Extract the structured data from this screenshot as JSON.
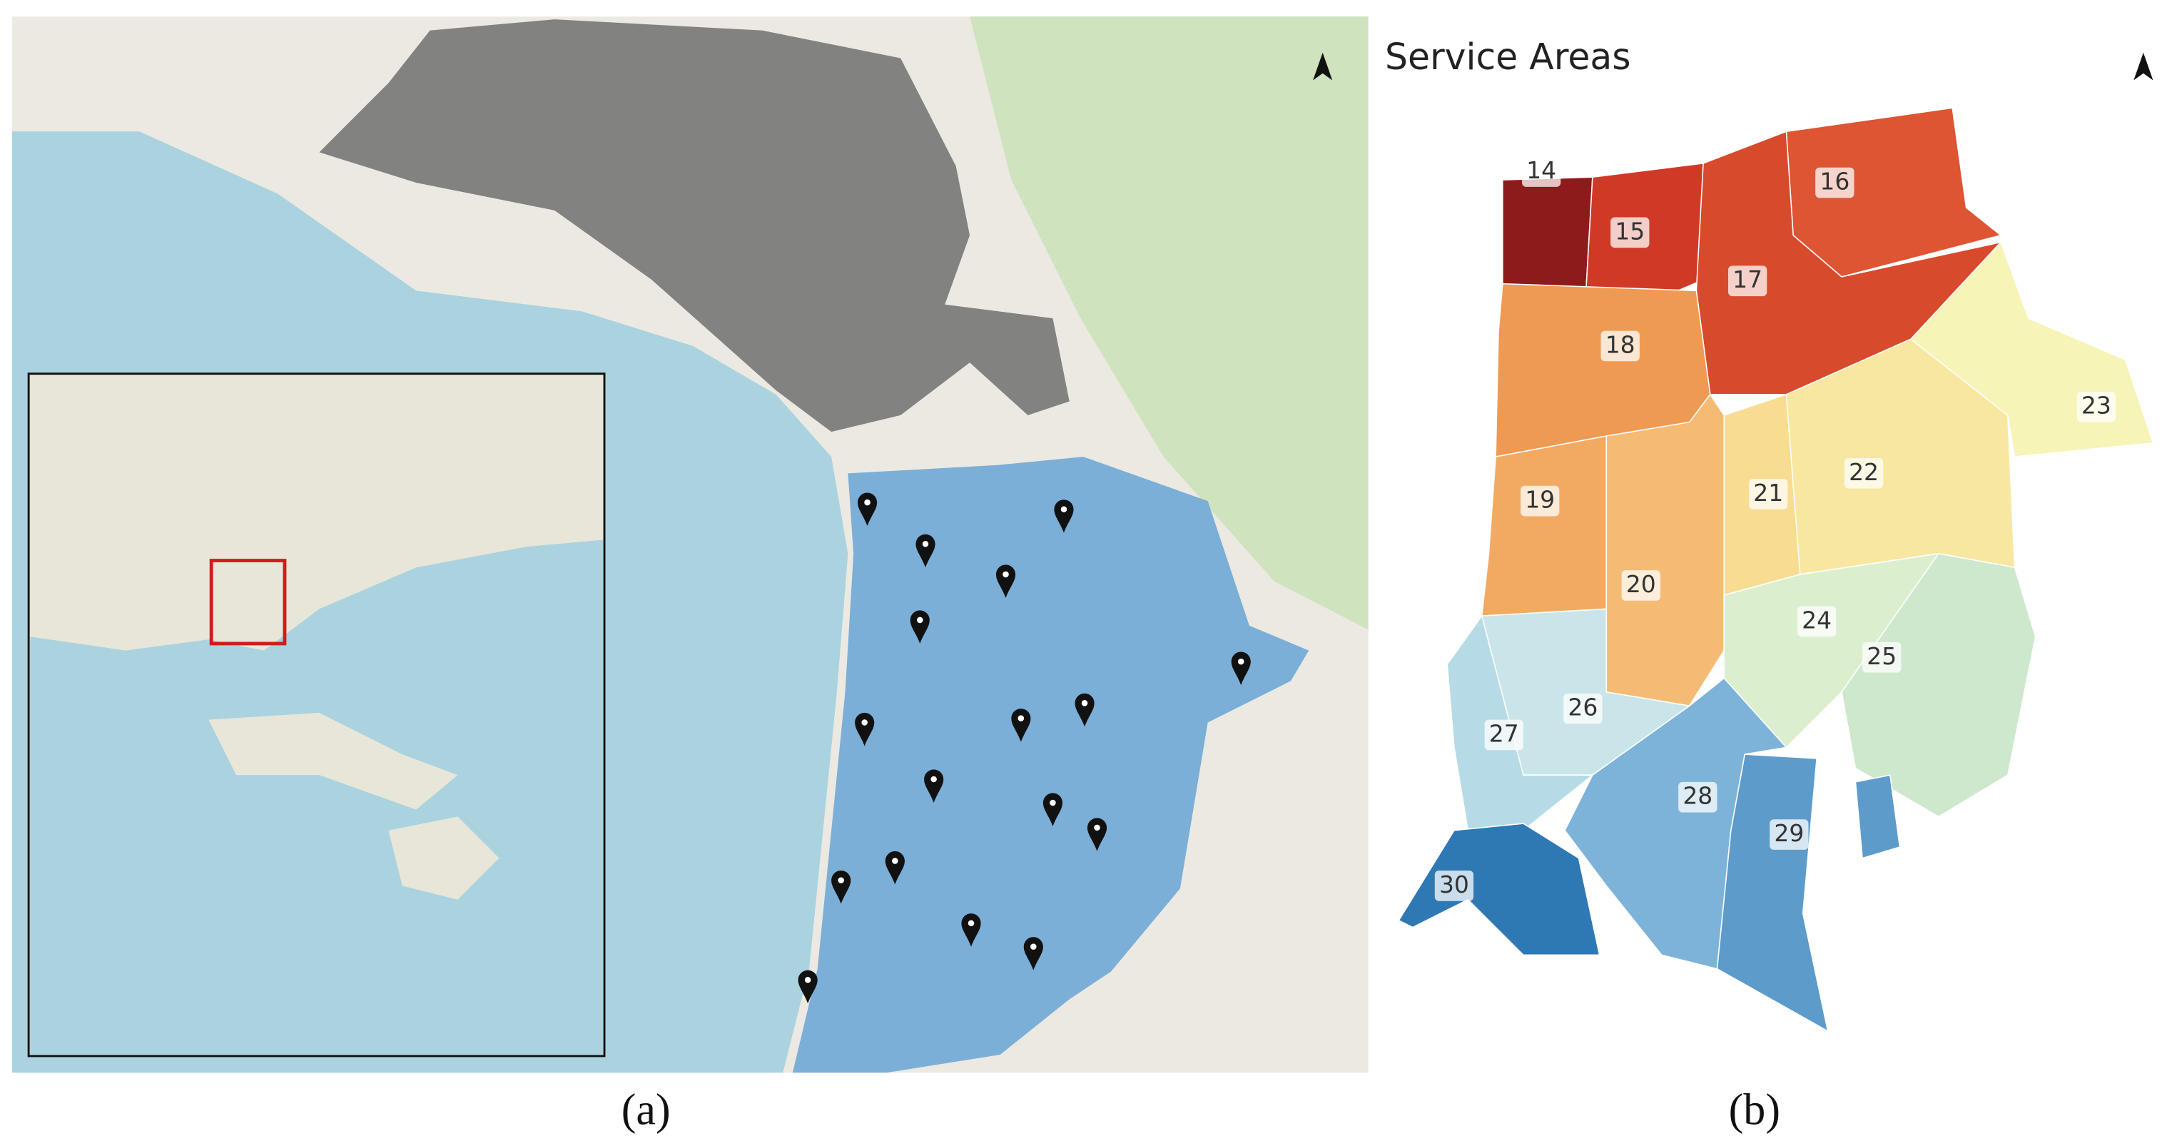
{
  "panels": [
    {
      "label": "(a)"
    },
    {
      "label": "(b)",
      "title": "Service Areas",
      "areas": [
        {
          "label": "14",
          "color": "#8e1b1b"
        },
        {
          "label": "15",
          "color": "#cf3a27"
        },
        {
          "label": "16",
          "color": "#dd5533"
        },
        {
          "label": "17",
          "color": "#d84a2c"
        },
        {
          "label": "18",
          "color": "#ee9a52"
        },
        {
          "label": "19",
          "color": "#f2aa63"
        },
        {
          "label": "20",
          "color": "#f5bb74"
        },
        {
          "label": "21",
          "color": "#f7dc91"
        },
        {
          "label": "22",
          "color": "#f8e7a0"
        },
        {
          "label": "23",
          "color": "#f6f4b6"
        },
        {
          "label": "24",
          "color": "#dbefcf"
        },
        {
          "label": "25",
          "color": "#cde8cc"
        },
        {
          "label": "26",
          "color": "#c9e5ea"
        },
        {
          "label": "27",
          "color": "#b6dbe6"
        },
        {
          "label": "28",
          "color": "#7db3d8"
        },
        {
          "label": "29",
          "color": "#5d9bcb"
        },
        {
          "label": "30",
          "color": "#2e78b4"
        }
      ]
    }
  ]
}
